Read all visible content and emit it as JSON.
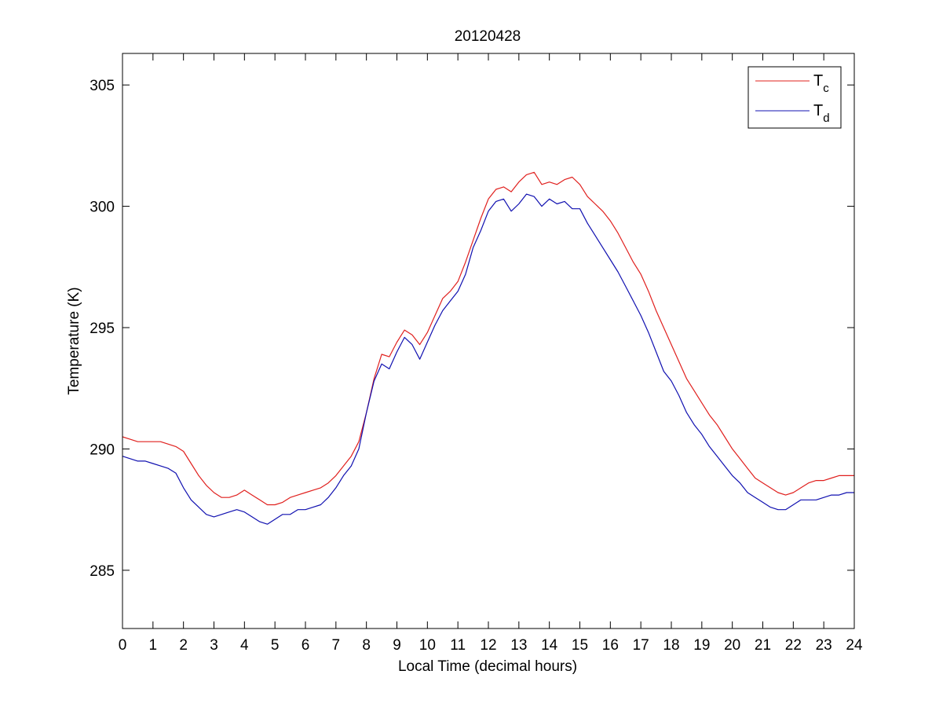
{
  "chart_data": {
    "type": "line",
    "title": "20120428",
    "xlabel": "Local Time (decimal hours)",
    "ylabel": "Temperature (K)",
    "xlim": [
      0,
      24
    ],
    "ylim": [
      282.6,
      306.3
    ],
    "xticks": [
      0,
      1,
      2,
      3,
      4,
      5,
      6,
      7,
      8,
      9,
      10,
      11,
      12,
      13,
      14,
      15,
      16,
      17,
      18,
      19,
      20,
      21,
      22,
      23,
      24
    ],
    "yticks": [
      285,
      290,
      295,
      300,
      305
    ],
    "xtick_labels": [
      "0",
      "1",
      "2",
      "3",
      "4",
      "5",
      "6",
      "7",
      "8",
      "9",
      "10",
      "11",
      "12",
      "13",
      "14",
      "15",
      "16",
      "17",
      "18",
      "19",
      "20",
      "21",
      "22",
      "23",
      "24"
    ],
    "ytick_labels": [
      "285",
      "290",
      "295",
      "300",
      "305"
    ],
    "grid": false,
    "legend_position": "top-right",
    "series": [
      {
        "name": "Tc",
        "legend_main": "T",
        "legend_sub": "c",
        "color": "#e0201e",
        "x": [
          0,
          0.25,
          0.5,
          0.75,
          1,
          1.25,
          1.5,
          1.75,
          2,
          2.25,
          2.5,
          2.75,
          3,
          3.25,
          3.5,
          3.75,
          4,
          4.25,
          4.5,
          4.75,
          5,
          5.25,
          5.5,
          5.75,
          6,
          6.25,
          6.5,
          6.75,
          7,
          7.25,
          7.5,
          7.75,
          8,
          8.25,
          8.5,
          8.75,
          9,
          9.25,
          9.5,
          9.75,
          10,
          10.25,
          10.5,
          10.75,
          11,
          11.25,
          11.5,
          11.75,
          12,
          12.25,
          12.5,
          12.75,
          13,
          13.25,
          13.5,
          13.75,
          14,
          14.25,
          14.5,
          14.75,
          15,
          15.25,
          15.5,
          15.75,
          16,
          16.25,
          16.5,
          16.75,
          17,
          17.25,
          17.5,
          17.75,
          18,
          18.25,
          18.5,
          18.75,
          19,
          19.25,
          19.5,
          19.75,
          20,
          20.25,
          20.5,
          20.75,
          21,
          21.25,
          21.5,
          21.75,
          22,
          22.25,
          22.5,
          22.75,
          23,
          23.25,
          23.5,
          23.75,
          24
        ],
        "y": [
          290.5,
          290.4,
          290.3,
          290.3,
          290.3,
          290.3,
          290.2,
          290.1,
          289.9,
          289.4,
          288.9,
          288.5,
          288.2,
          288.0,
          288.0,
          288.1,
          288.3,
          288.1,
          287.9,
          287.7,
          287.7,
          287.8,
          288.0,
          288.1,
          288.2,
          288.3,
          288.4,
          288.6,
          288.9,
          289.3,
          289.7,
          290.3,
          291.5,
          292.9,
          293.9,
          293.8,
          294.4,
          294.9,
          294.7,
          294.3,
          294.8,
          295.5,
          296.2,
          296.5,
          296.9,
          297.7,
          298.6,
          299.5,
          300.3,
          300.7,
          300.8,
          300.6,
          301.0,
          301.3,
          301.4,
          300.9,
          301.0,
          300.9,
          301.1,
          301.2,
          300.9,
          300.4,
          300.1,
          299.8,
          299.4,
          298.9,
          298.3,
          297.7,
          297.2,
          296.5,
          295.7,
          295.0,
          294.3,
          293.6,
          292.9,
          292.4,
          291.9,
          291.4,
          291.0,
          290.5,
          290.0,
          289.6,
          289.2,
          288.8,
          288.6,
          288.4,
          288.2,
          288.1,
          288.2,
          288.4,
          288.6,
          288.7,
          288.7,
          288.8,
          288.9,
          288.9,
          288.9
        ]
      },
      {
        "name": "Td",
        "legend_main": "T",
        "legend_sub": "d",
        "color": "#1010b0",
        "x": [
          0,
          0.25,
          0.5,
          0.75,
          1,
          1.25,
          1.5,
          1.75,
          2,
          2.25,
          2.5,
          2.75,
          3,
          3.25,
          3.5,
          3.75,
          4,
          4.25,
          4.5,
          4.75,
          5,
          5.25,
          5.5,
          5.75,
          6,
          6.25,
          6.5,
          6.75,
          7,
          7.25,
          7.5,
          7.75,
          8,
          8.25,
          8.5,
          8.75,
          9,
          9.25,
          9.5,
          9.75,
          10,
          10.25,
          10.5,
          10.75,
          11,
          11.25,
          11.5,
          11.75,
          12,
          12.25,
          12.5,
          12.75,
          13,
          13.25,
          13.5,
          13.75,
          14,
          14.25,
          14.5,
          14.75,
          15,
          15.25,
          15.5,
          15.75,
          16,
          16.25,
          16.5,
          16.75,
          17,
          17.25,
          17.5,
          17.75,
          18,
          18.25,
          18.5,
          18.75,
          19,
          19.25,
          19.5,
          19.75,
          20,
          20.25,
          20.5,
          20.75,
          21,
          21.25,
          21.5,
          21.75,
          22,
          22.25,
          22.5,
          22.75,
          23,
          23.25,
          23.5,
          23.75,
          24
        ],
        "y": [
          289.7,
          289.6,
          289.5,
          289.5,
          289.4,
          289.3,
          289.2,
          289.0,
          288.4,
          287.9,
          287.6,
          287.3,
          287.2,
          287.3,
          287.4,
          287.5,
          287.4,
          287.2,
          287.0,
          286.9,
          287.1,
          287.3,
          287.3,
          287.5,
          287.5,
          287.6,
          287.7,
          288.0,
          288.4,
          288.9,
          289.3,
          290.0,
          291.5,
          292.8,
          293.5,
          293.3,
          294.0,
          294.6,
          294.3,
          293.7,
          294.4,
          295.1,
          295.7,
          296.1,
          296.5,
          297.2,
          298.3,
          299.0,
          299.8,
          300.2,
          300.3,
          299.8,
          300.1,
          300.5,
          300.4,
          300.0,
          300.3,
          300.1,
          300.2,
          299.9,
          299.9,
          299.3,
          298.8,
          298.3,
          297.8,
          297.3,
          296.7,
          296.1,
          295.5,
          294.8,
          294.0,
          293.2,
          292.8,
          292.2,
          291.5,
          291.0,
          290.6,
          290.1,
          289.7,
          289.3,
          288.9,
          288.6,
          288.2,
          288.0,
          287.8,
          287.6,
          287.5,
          287.5,
          287.7,
          287.9,
          287.9,
          287.9,
          288.0,
          288.1,
          288.1,
          288.2,
          288.2
        ]
      }
    ]
  }
}
